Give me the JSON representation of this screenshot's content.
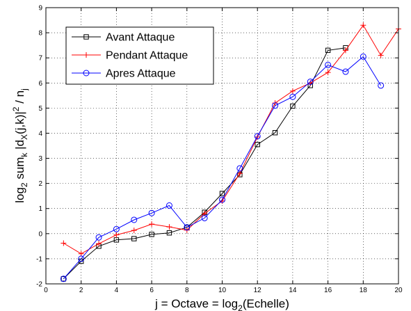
{
  "chart_data": {
    "type": "line",
    "xlabel": "j = Octave = log",
    "xlabel_sub": "2",
    "xlabel_tail": "(Echelle)",
    "ylabel_parts": [
      {
        "t": "log",
        "s": "base"
      },
      {
        "t": "2",
        "s": "sub"
      },
      {
        "t": " sum",
        "s": "base"
      },
      {
        "t": "k",
        "s": "sub"
      },
      {
        "t": " |d",
        "s": "base"
      },
      {
        "t": "X",
        "s": "sub"
      },
      {
        "t": "(j,k)|",
        "s": "base"
      },
      {
        "t": "2",
        "s": "sup"
      },
      {
        "t": " / n",
        "s": "base"
      },
      {
        "t": "j",
        "s": "sub"
      }
    ],
    "xlim": [
      0,
      20
    ],
    "ylim": [
      -2,
      9
    ],
    "xticks": [
      0,
      2,
      4,
      6,
      8,
      10,
      12,
      14,
      16,
      18,
      20
    ],
    "yticks": [
      -2,
      -1,
      0,
      1,
      2,
      3,
      4,
      5,
      6,
      7,
      8,
      9
    ],
    "grid": true,
    "legend_position": "top-left",
    "series": [
      {
        "name": "Avant Attaque",
        "color": "#000000",
        "marker": "square",
        "x": [
          1,
          2,
          3,
          4,
          5,
          6,
          7,
          8,
          9,
          10,
          11,
          12,
          13,
          14,
          15,
          16,
          17
        ],
        "y": [
          -1.8,
          -1.1,
          -0.5,
          -0.25,
          -0.2,
          -0.03,
          0.03,
          0.25,
          0.85,
          1.6,
          2.35,
          3.55,
          4.02,
          5.08,
          5.9,
          7.3,
          7.4
        ]
      },
      {
        "name": "Pendant Attaque",
        "color": "#ff0000",
        "marker": "plus",
        "x": [
          1,
          2,
          3,
          4,
          5,
          6,
          7,
          8,
          9,
          10,
          11,
          12,
          13,
          14,
          15,
          16,
          17,
          18,
          19,
          20
        ],
        "y": [
          -0.38,
          -0.8,
          -0.4,
          -0.05,
          0.13,
          0.38,
          0.27,
          0.14,
          0.8,
          1.3,
          2.4,
          3.85,
          5.2,
          5.68,
          6.0,
          6.42,
          7.3,
          8.3,
          7.1,
          8.15
        ]
      },
      {
        "name": "Apres Attaque",
        "color": "#0000ff",
        "marker": "circle",
        "x": [
          1,
          2,
          3,
          4,
          5,
          6,
          7,
          8,
          9,
          10,
          11,
          12,
          13,
          14,
          15,
          16,
          17,
          18,
          19
        ],
        "y": [
          -1.8,
          -1.0,
          -0.15,
          0.18,
          0.55,
          0.82,
          1.12,
          0.25,
          0.62,
          1.35,
          2.6,
          3.88,
          5.1,
          5.45,
          6.05,
          6.72,
          6.45,
          7.05,
          5.9
        ]
      }
    ]
  }
}
